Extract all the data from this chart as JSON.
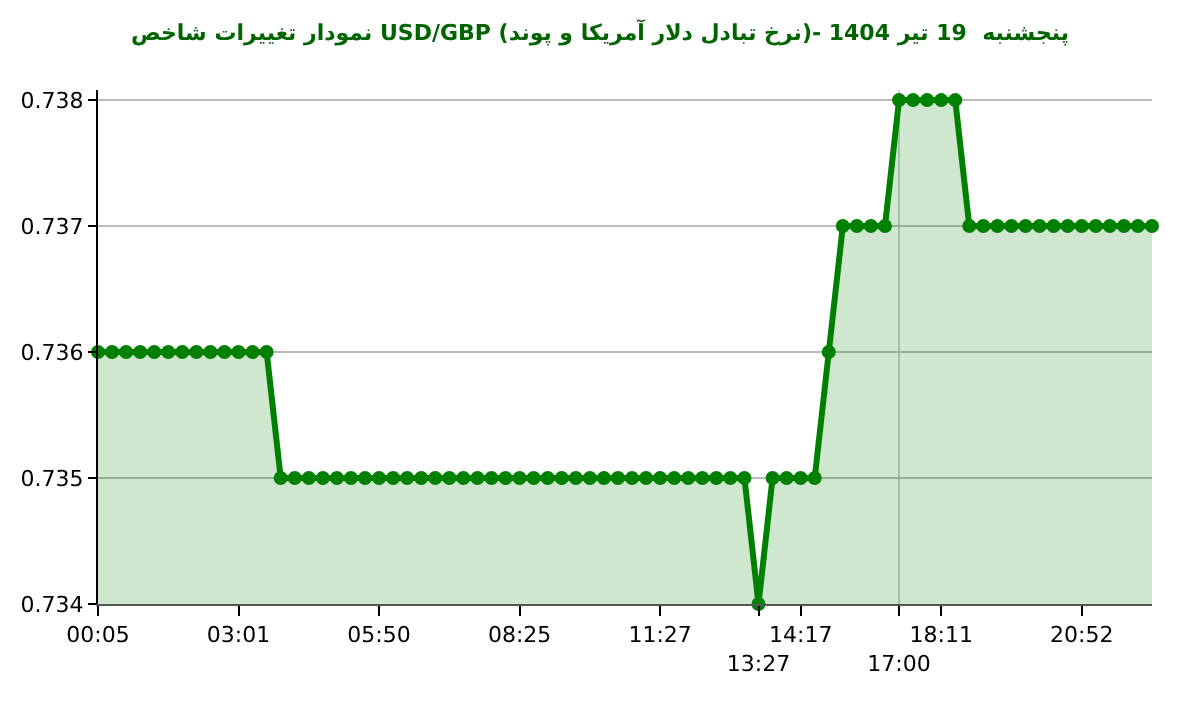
{
  "chart_data": {
    "type": "area",
    "title": "نمودار تغییرات شاخص USD/GBP (نرخ تبادل دلار آمریکا و پوند)- پنجشنبه  19 تیر 1404",
    "categories": [
      "00:05",
      null,
      null,
      null,
      null,
      null,
      null,
      null,
      null,
      null,
      "03:01",
      null,
      null,
      null,
      null,
      null,
      null,
      null,
      null,
      null,
      "05:50",
      null,
      null,
      null,
      null,
      null,
      null,
      null,
      null,
      null,
      "08:25",
      null,
      null,
      null,
      null,
      null,
      null,
      null,
      null,
      null,
      "11:27",
      null,
      null,
      null,
      null,
      null,
      null,
      "13:27",
      null,
      null,
      "14:17",
      null,
      null,
      null,
      null,
      null,
      null,
      "17:00",
      null,
      null,
      "18:11",
      null,
      null,
      null,
      null,
      null,
      null,
      null,
      null,
      null,
      "20:52",
      null,
      null,
      null,
      null,
      null
    ],
    "series": [
      {
        "color": "#008000",
        "values": [
          0.736,
          0.736,
          0.736,
          0.736,
          0.736,
          0.736,
          0.736,
          0.736,
          0.736,
          0.736,
          0.736,
          0.736,
          0.736,
          0.735,
          0.735,
          0.735,
          0.735,
          0.735,
          0.735,
          0.735,
          0.735,
          0.735,
          0.735,
          0.735,
          0.735,
          0.735,
          0.735,
          0.735,
          0.735,
          0.735,
          0.735,
          0.735,
          0.735,
          0.735,
          0.735,
          0.735,
          0.735,
          0.735,
          0.735,
          0.735,
          0.735,
          0.735,
          0.735,
          0.735,
          0.735,
          0.735,
          0.735,
          0.734,
          0.735,
          0.735,
          0.735,
          0.735,
          0.736,
          0.737,
          0.737,
          0.737,
          0.737,
          0.738,
          0.738,
          0.738,
          0.738,
          0.738,
          0.737,
          0.737,
          0.737,
          0.737,
          0.737,
          0.737,
          0.737,
          0.737,
          0.737,
          0.737,
          0.737,
          0.737,
          0.737,
          0.737
        ]
      }
    ],
    "ylim": [
      0.734,
      0.73808
    ],
    "yticks": [
      0.734,
      0.735,
      0.736,
      0.737,
      0.738
    ],
    "grid": "y",
    "marker": "circle",
    "line_style": "solid",
    "ref_lines": [
      {
        "axis": "x",
        "value": "17:00",
        "color": "#cccccc"
      }
    ]
  }
}
